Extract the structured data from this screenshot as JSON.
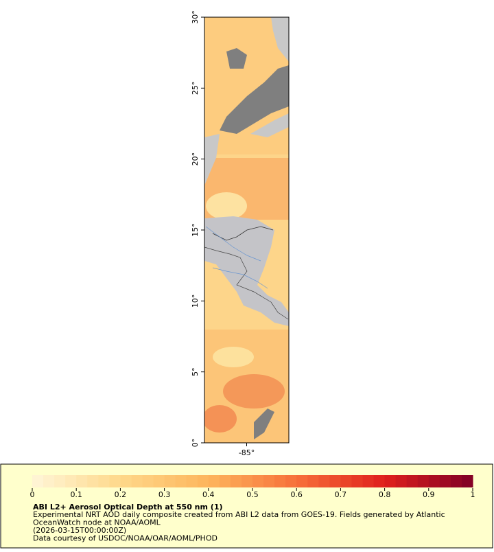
{
  "map": {
    "type": "raster-map",
    "xlim": [
      -88,
      -82
    ],
    "xticks": [
      {
        "value": -85,
        "label": "-85°"
      }
    ],
    "ylim": [
      0,
      30
    ],
    "yticks": [
      {
        "value": 0,
        "label": "0°"
      },
      {
        "value": 5,
        "label": "5°"
      },
      {
        "value": 10,
        "label": "10°"
      },
      {
        "value": 15,
        "label": "15°"
      },
      {
        "value": 20,
        "label": "20°"
      },
      {
        "value": 25,
        "label": "25°"
      },
      {
        "value": 30,
        "label": "30°"
      }
    ],
    "colorbar": {
      "range": [
        0,
        1
      ],
      "ticks": [
        0,
        0.1,
        0.2,
        0.3,
        0.4,
        0.5,
        0.6,
        0.7,
        0.8,
        0.9,
        1
      ],
      "colors": [
        "#fff6d8",
        "#fed88a",
        "#fdb55c",
        "#f7703a",
        "#e0201c",
        "#800026"
      ]
    },
    "legend": {
      "title": "ABI L2+ Aerosol Optical Depth at 550 nm (1)",
      "lines": [
        "Experimental NRT AOD daily composite created from ABI L2 data from GOES-19. Fields generated by Atlantic",
        "OceanWatch node at NOAA/AOML",
        "(2026-03-15T00:00:00Z)",
        "Data courtesy of USDOC/NOAA/OAR/AOML/PHOD"
      ]
    }
  }
}
